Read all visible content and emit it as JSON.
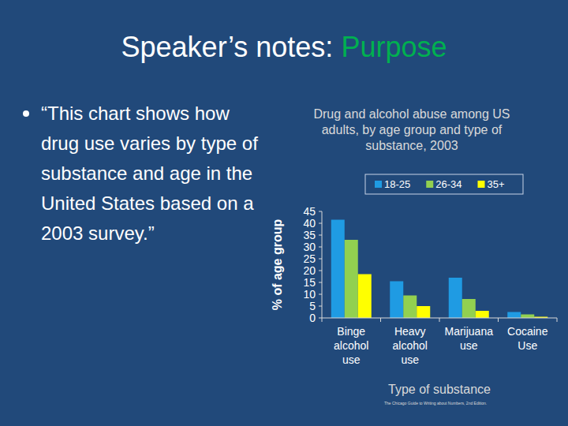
{
  "slide": {
    "title": "Speaker’s notes: ",
    "title_highlight": "Purpose",
    "bullet": "“This chart shows how drug use varies by type of substance and age in the United States based on a 2003 survey.”"
  },
  "chart_data": {
    "type": "bar",
    "title": "Drug and alcohol abuse among US adults, by age group and type of substance, 2003",
    "x_label": "Type of substance",
    "y_label": "% of age group",
    "source": "The Chicago Guide to Writing about Numbers, 2nd Edition.",
    "categories": [
      "Binge alcohol use",
      "Heavy alcohol use",
      "Marijuana use",
      "Cocaine Use"
    ],
    "series": [
      {
        "name": "18-25",
        "color": "#1f9be3",
        "values": [
          41.5,
          15.5,
          17,
          2.5
        ]
      },
      {
        "name": "26-34",
        "color": "#92d050",
        "values": [
          33,
          9.5,
          8,
          1.5
        ]
      },
      {
        "name": "35+",
        "color": "#ffff00",
        "values": [
          18.5,
          5,
          3,
          0.5
        ]
      }
    ],
    "ylim": [
      0,
      45
    ],
    "yticks": [
      0,
      5,
      10,
      15,
      20,
      25,
      30,
      35,
      40,
      45
    ],
    "grid": false,
    "legend": "top"
  }
}
